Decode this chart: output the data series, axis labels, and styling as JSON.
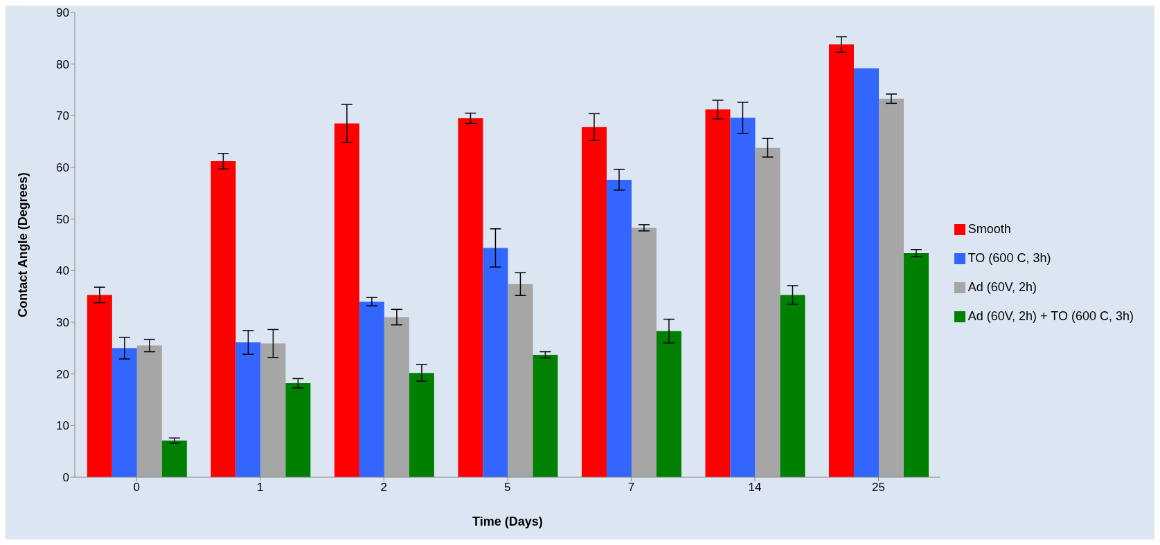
{
  "chart_data": {
    "type": "bar",
    "xlabel": "Time (Days)",
    "ylabel": "Contact Angle (Degrees)",
    "categories": [
      "0",
      "1",
      "2",
      "5",
      "7",
      "14",
      "25"
    ],
    "ylim": [
      0,
      90
    ],
    "yticks": [
      0,
      10,
      20,
      30,
      40,
      50,
      60,
      70,
      80,
      90
    ],
    "grid": false,
    "legend": "right",
    "series": [
      {
        "name": "Smooth",
        "color": "#ff0000",
        "values": [
          35.3,
          61.2,
          68.5,
          69.5,
          67.8,
          71.2,
          83.8
        ],
        "errors": [
          1.5,
          1.5,
          3.7,
          1.0,
          2.6,
          1.8,
          1.5
        ]
      },
      {
        "name": "TO (600 C, 3h)",
        "color": "#3366ff",
        "values": [
          25.0,
          26.1,
          34.0,
          44.4,
          57.6,
          69.6,
          79.2
        ],
        "errors": [
          2.1,
          2.3,
          0.8,
          3.7,
          2.0,
          3.0,
          null
        ]
      },
      {
        "name": "Ad (60V, 2h)",
        "color": "#a6a6a6",
        "values": [
          25.5,
          25.9,
          31.0,
          37.4,
          48.3,
          63.8,
          73.3
        ],
        "errors": [
          1.2,
          2.7,
          1.5,
          2.2,
          0.6,
          1.8,
          0.9
        ]
      },
      {
        "name": "Ad (60V, 2h) + TO (600 C, 3h)",
        "color": "#008000",
        "values": [
          7.1,
          18.2,
          20.2,
          23.7,
          28.3,
          35.3,
          43.4
        ],
        "errors": [
          0.5,
          0.9,
          1.6,
          0.6,
          2.3,
          1.8,
          0.7
        ]
      }
    ]
  }
}
